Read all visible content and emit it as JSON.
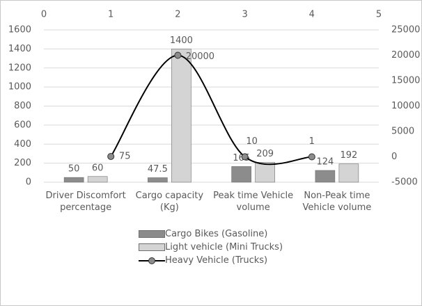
{
  "chart_data": {
    "type": "bar",
    "categories": [
      "Driver Discomfort percentage",
      "Cargo capacity (Kg)",
      "Peak time Vehicle volume",
      "Non-Peak time Vehicle volume"
    ],
    "series": [
      {
        "name": "Cargo Bikes (Gasoline)",
        "color": "#8c8c8c",
        "values": [
          50,
          47.5,
          165,
          124
        ]
      },
      {
        "name": "Light vehicle (Mini Trucks)",
        "color": "#d4d4d4",
        "values": [
          60,
          1400,
          209,
          192
        ]
      },
      {
        "name": "Heavy Vehicle (Trucks)",
        "type": "line",
        "color": "#000000",
        "marker_color": "#8c8c8c",
        "axis": "y2",
        "x": [
          1,
          2,
          3,
          4
        ],
        "values": [
          75,
          20000,
          10,
          1
        ]
      }
    ],
    "ylim": [
      0,
      1600
    ],
    "yticks": [
      0,
      200,
      400,
      600,
      800,
      1000,
      1200,
      1400,
      1600
    ],
    "y2lim": [
      -5000,
      25000
    ],
    "y2ticks": [
      -5000,
      0,
      5000,
      10000,
      15000,
      20000,
      25000
    ],
    "xlim": [
      0,
      5
    ],
    "xticks": [
      0,
      1,
      2,
      3,
      4,
      5
    ],
    "grid": true,
    "legend": "bottom"
  }
}
